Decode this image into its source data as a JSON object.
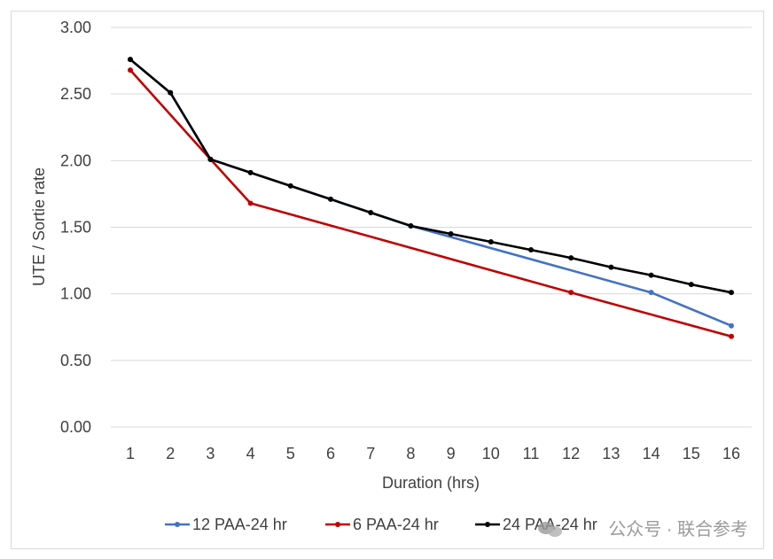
{
  "chart_data": {
    "type": "line",
    "title": "",
    "xlabel": "Duration (hrs)",
    "ylabel": "UTE / Sortie rate",
    "ylim": [
      0,
      3
    ],
    "yticks": [
      "0.00",
      "0.50",
      "1.00",
      "1.50",
      "2.00",
      "2.50",
      "3.00"
    ],
    "categories": [
      "1",
      "2",
      "3",
      "4",
      "5",
      "6",
      "7",
      "8",
      "9",
      "10",
      "11",
      "12",
      "13",
      "14",
      "15",
      "16"
    ],
    "grid": true,
    "legend_position": "bottom",
    "series": [
      {
        "name": "12 PAA-24 hr",
        "color": "#4472c4",
        "points": [
          [
            1,
            2.76
          ],
          [
            2,
            2.51
          ],
          [
            3,
            2.01
          ],
          [
            8,
            1.51
          ],
          [
            14,
            1.01
          ],
          [
            16,
            0.76
          ]
        ]
      },
      {
        "name": "6 PAA-24 hr",
        "color": "#c00000",
        "points": [
          [
            1,
            2.68
          ],
          [
            3,
            2.01
          ],
          [
            4,
            1.68
          ],
          [
            12,
            1.01
          ],
          [
            16,
            0.68
          ]
        ]
      },
      {
        "name": "24 PAA-24 hr",
        "color": "#000000",
        "points": [
          [
            1,
            2.76
          ],
          [
            2,
            2.51
          ],
          [
            3,
            2.01
          ],
          [
            4,
            1.91
          ],
          [
            5,
            1.81
          ],
          [
            6,
            1.71
          ],
          [
            7,
            1.61
          ],
          [
            8,
            1.51
          ],
          [
            9,
            1.45
          ],
          [
            10,
            1.39
          ],
          [
            11,
            1.33
          ],
          [
            12,
            1.27
          ],
          [
            13,
            1.2
          ],
          [
            14,
            1.14
          ],
          [
            15,
            1.07
          ],
          [
            16,
            1.01
          ]
        ]
      }
    ]
  },
  "watermark": {
    "text": "公众号 · 联合参考",
    "icon": "wechat-icon"
  }
}
